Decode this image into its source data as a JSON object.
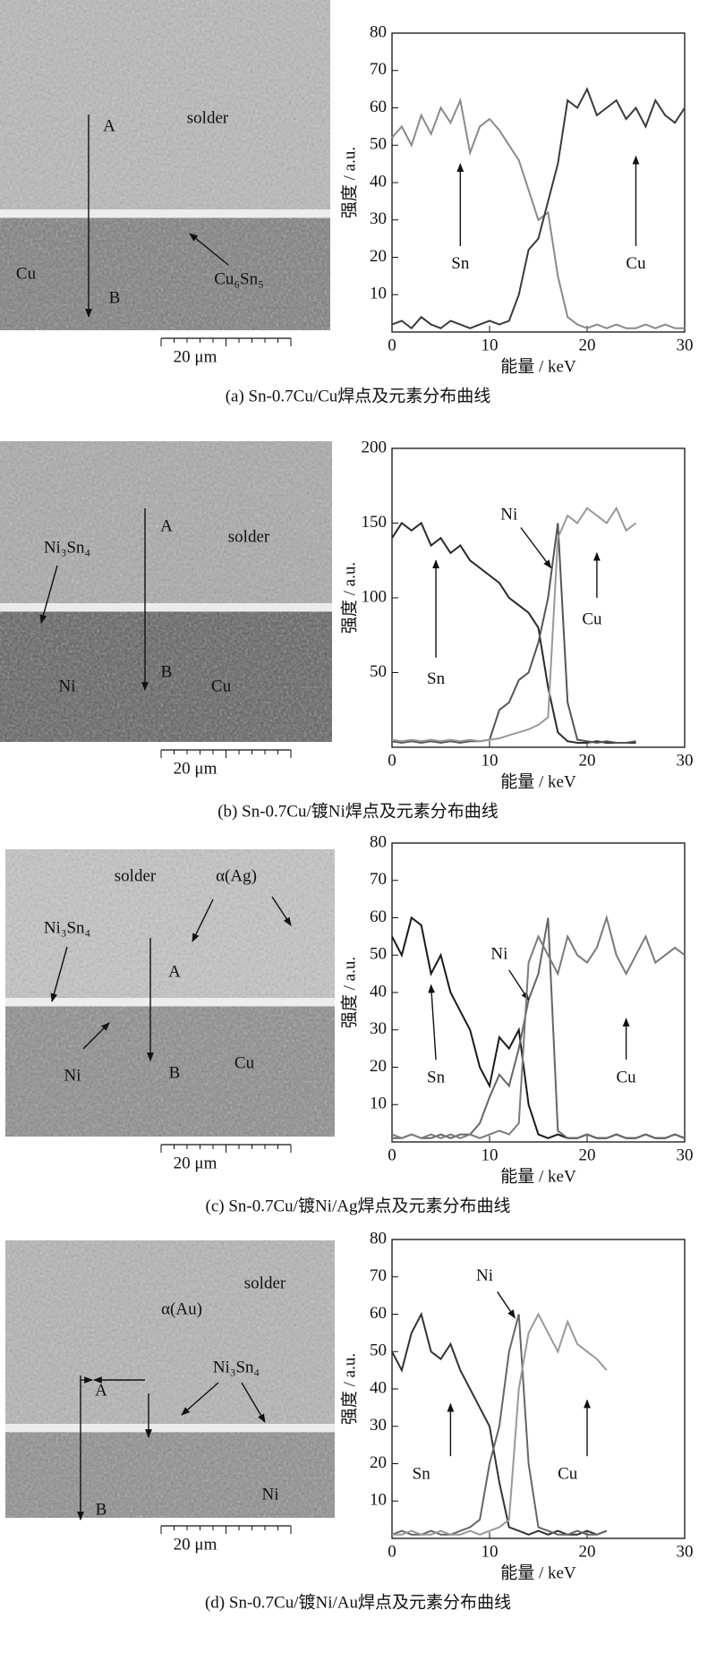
{
  "chart_data": [
    {
      "type": "line",
      "x_label": "能量 / keV",
      "y_label": "强度 / a.u.",
      "x": [
        0,
        1,
        2,
        3,
        4,
        5,
        6,
        7,
        8,
        9,
        10,
        11,
        12,
        13,
        14,
        15,
        16,
        17,
        18,
        19,
        20,
        21,
        22,
        23,
        24,
        25,
        26,
        27,
        28,
        29,
        30
      ],
      "xlim": [
        0,
        30
      ],
      "ylim": [
        0,
        80
      ],
      "xticks": [
        0,
        10,
        20,
        30
      ],
      "yticks": [
        10,
        20,
        30,
        40,
        50,
        60,
        70,
        80
      ],
      "series": [
        {
          "name": "Sn",
          "color": "#8a8a8a",
          "values": [
            52,
            55,
            50,
            58,
            53,
            60,
            56,
            62,
            48,
            55,
            57,
            54,
            50,
            46,
            38,
            30,
            32,
            15,
            4,
            2,
            1,
            2,
            1,
            2,
            1,
            1,
            2,
            1,
            2,
            1,
            1
          ]
        },
        {
          "name": "Cu",
          "color": "#3a3a3a",
          "values": [
            2,
            3,
            1,
            4,
            2,
            1,
            3,
            2,
            1,
            2,
            3,
            2,
            3,
            10,
            22,
            25,
            35,
            45,
            62,
            60,
            65,
            58,
            60,
            62,
            57,
            60,
            55,
            62,
            58,
            56,
            60
          ]
        }
      ]
    },
    {
      "type": "line",
      "x_label": "能量 / keV",
      "y_label": "强度 / a.u.",
      "x": [
        0,
        1,
        2,
        3,
        4,
        5,
        6,
        7,
        8,
        9,
        10,
        11,
        12,
        13,
        14,
        15,
        16,
        17,
        18,
        19,
        20,
        21,
        22,
        23,
        24,
        25
      ],
      "xlim": [
        0,
        30
      ],
      "ylim": [
        0,
        200
      ],
      "xticks": [
        0,
        10,
        20,
        30
      ],
      "yticks": [
        50,
        100,
        150,
        200
      ],
      "series": [
        {
          "name": "Sn",
          "color": "#2a2a2a",
          "values": [
            140,
            150,
            145,
            150,
            135,
            140,
            130,
            135,
            125,
            120,
            115,
            110,
            100,
            95,
            90,
            80,
            40,
            10,
            4,
            3,
            3,
            4,
            3,
            3,
            3,
            3
          ]
        },
        {
          "name": "Ni",
          "color": "#555555",
          "values": [
            4,
            3,
            4,
            3,
            4,
            3,
            4,
            3,
            4,
            4,
            5,
            25,
            30,
            45,
            50,
            70,
            100,
            150,
            30,
            5,
            4,
            3,
            4,
            3,
            3,
            4
          ]
        },
        {
          "name": "Cu",
          "color": "#999999",
          "values": [
            5,
            4,
            5,
            4,
            5,
            4,
            5,
            4,
            5,
            4,
            5,
            6,
            8,
            10,
            12,
            15,
            20,
            140,
            155,
            150,
            160,
            155,
            150,
            160,
            145,
            150
          ]
        }
      ]
    },
    {
      "type": "line",
      "x_label": "能量 / keV",
      "y_label": "强度 / a.u.",
      "x": [
        0,
        1,
        2,
        3,
        4,
        5,
        6,
        7,
        8,
        9,
        10,
        11,
        12,
        13,
        14,
        15,
        16,
        17,
        18,
        19,
        20,
        21,
        22,
        23,
        24,
        25,
        26,
        27,
        28,
        29,
        30
      ],
      "xlim": [
        0,
        30
      ],
      "ylim": [
        0,
        80
      ],
      "xticks": [
        0,
        10,
        20,
        30
      ],
      "yticks": [
        10,
        20,
        30,
        40,
        50,
        60,
        70,
        80
      ],
      "series": [
        {
          "name": "Sn",
          "color": "#1a1a1a",
          "values": [
            55,
            50,
            60,
            58,
            45,
            50,
            40,
            35,
            30,
            20,
            15,
            28,
            25,
            30,
            10,
            2,
            1,
            2,
            1,
            1,
            2,
            1,
            1,
            2,
            1,
            1,
            2,
            1,
            1,
            2,
            1
          ]
        },
        {
          "name": "Ni",
          "color": "#666666",
          "values": [
            1,
            1,
            2,
            1,
            1,
            2,
            1,
            2,
            2,
            5,
            12,
            18,
            15,
            25,
            38,
            45,
            60,
            3,
            1,
            1,
            2,
            1,
            1,
            2,
            1,
            1,
            2,
            1,
            1,
            2,
            1
          ]
        },
        {
          "name": "Cu",
          "color": "#7a7a7a",
          "values": [
            2,
            1,
            2,
            1,
            2,
            1,
            2,
            1,
            2,
            1,
            2,
            3,
            2,
            5,
            48,
            55,
            50,
            45,
            55,
            50,
            48,
            52,
            60,
            50,
            45,
            50,
            55,
            48,
            50,
            52,
            50
          ]
        }
      ]
    },
    {
      "type": "line",
      "x_label": "能量 / keV",
      "y_label": "强度 / a.u.",
      "x": [
        0,
        1,
        2,
        3,
        4,
        5,
        6,
        7,
        8,
        9,
        10,
        11,
        12,
        13,
        14,
        15,
        16,
        17,
        18,
        19,
        20,
        21,
        22
      ],
      "xlim": [
        0,
        30
      ],
      "ylim": [
        0,
        80
      ],
      "xticks": [
        0,
        10,
        20,
        30
      ],
      "yticks": [
        10,
        20,
        30,
        40,
        50,
        60,
        70,
        80
      ],
      "series": [
        {
          "name": "Sn",
          "color": "#333333",
          "values": [
            50,
            45,
            55,
            60,
            50,
            48,
            52,
            45,
            40,
            35,
            30,
            15,
            3,
            2,
            1,
            2,
            1,
            2,
            1,
            1,
            2,
            1,
            2
          ]
        },
        {
          "name": "Ni",
          "color": "#666666",
          "values": [
            1,
            2,
            1,
            1,
            2,
            1,
            1,
            2,
            3,
            5,
            20,
            30,
            50,
            60,
            20,
            3,
            2,
            1,
            1,
            2,
            1,
            1,
            2
          ]
        },
        {
          "name": "Cu",
          "color": "#999999",
          "values": [
            1,
            1,
            2,
            1,
            1,
            2,
            1,
            1,
            2,
            1,
            2,
            3,
            5,
            40,
            55,
            60,
            55,
            50,
            58,
            52,
            50,
            48,
            45
          ]
        }
      ]
    }
  ],
  "figures": [
    {
      "caption": "(a) Sn-0.7Cu/Cu焊点及元素分布曲线",
      "scale_bar": "20 μm",
      "labels": [
        "A",
        "solder",
        "Cu",
        "B",
        "Cu₆Sn₅"
      ]
    },
    {
      "caption": "(b) Sn-0.7Cu/镀Ni焊点及元素分布曲线",
      "scale_bar": "20 μm",
      "labels": [
        "A",
        "solder",
        "Ni₃Sn₄",
        "Ni",
        "B",
        "Cu"
      ]
    },
    {
      "caption": "(c) Sn-0.7Cu/镀Ni/Ag焊点及元素分布曲线",
      "scale_bar": "20 μm",
      "labels": [
        "solder",
        "α(Ag)",
        "Ni₃Sn₄",
        "A",
        "Ni",
        "B",
        "Cu"
      ]
    },
    {
      "caption": "(d) Sn-0.7Cu/镀Ni/Au焊点及元素分布曲线",
      "scale_bar": "20 μm",
      "labels": [
        "solder",
        "α(Au)",
        "Ni₃Sn₄",
        "A",
        "B",
        "Ni"
      ]
    }
  ]
}
